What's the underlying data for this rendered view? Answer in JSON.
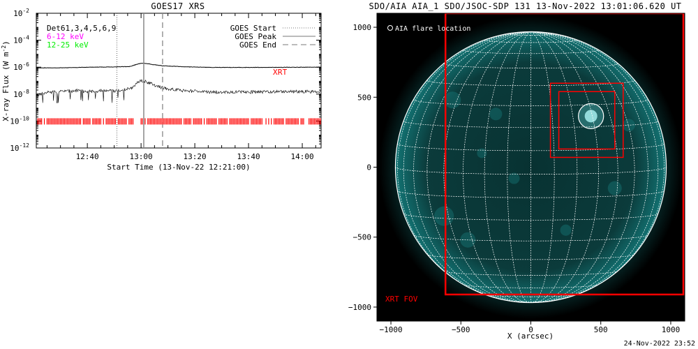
{
  "chart_data": [
    {
      "type": "line",
      "title": "GOES17 XRS",
      "xlabel": "Start Time (13-Nov-22 12:21:00)",
      "ylabel": "X-ray Flux (W m^-2)",
      "ylabel_parts": [
        "X-ray Flux (W m",
        "-2",
        ")"
      ],
      "x_tick_labels": [
        "12:40",
        "13:00",
        "13:20",
        "13:40",
        "14:00"
      ],
      "x_tick_minutes": [
        19,
        39,
        59,
        79,
        99
      ],
      "xlim_minutes": [
        0,
        106
      ],
      "ylim_exponent": [
        -12,
        -2
      ],
      "y_tick_exponents": [
        -2,
        -4,
        -6,
        -8,
        -10,
        -12
      ],
      "y_tick_base": "10",
      "yscale": "log",
      "legend_text": {
        "detectors": "Det",
        "detector_list": "61,3,4,5,6,9",
        "band_low": "6-12 keV",
        "band_high": "12-25 keV"
      },
      "legend_entries": [
        {
          "label": "GOES Start",
          "style": "dotted"
        },
        {
          "label": "GOES Peak",
          "style": "solid"
        },
        {
          "label": "GOES End",
          "style": "dashed"
        }
      ],
      "markers_minutes": {
        "goes_start": 30,
        "goes_peak": 40,
        "goes_end": 47
      },
      "series": [
        {
          "name": "",
          "color": "#000000",
          "points_exp": [
            [
              0,
              -6.05
            ],
            [
              10,
              -6.05
            ],
            [
              20,
              -6.0
            ],
            [
              30,
              -5.98
            ],
            [
              35,
              -5.95
            ],
            [
              38,
              -5.75
            ],
            [
              40,
              -5.7
            ],
            [
              43,
              -5.8
            ],
            [
              47,
              -5.9
            ],
            [
              55,
              -5.97
            ],
            [
              65,
              -6.02
            ],
            [
              80,
              -6.02
            ],
            [
              106,
              -6.0
            ]
          ]
        },
        {
          "name": "",
          "color": "#000000",
          "points_exp": [
            [
              0,
              -8.1
            ],
            [
              5,
              -7.85
            ],
            [
              10,
              -7.8
            ],
            [
              15,
              -7.75
            ],
            [
              20,
              -7.8
            ],
            [
              25,
              -7.75
            ],
            [
              30,
              -7.75
            ],
            [
              35,
              -7.6
            ],
            [
              38,
              -7.1
            ],
            [
              40,
              -7.0
            ],
            [
              43,
              -7.25
            ],
            [
              47,
              -7.55
            ],
            [
              55,
              -7.75
            ],
            [
              65,
              -7.85
            ],
            [
              80,
              -7.85
            ],
            [
              106,
              -7.8
            ]
          ]
        }
      ],
      "xrt_label": "XRT",
      "xrt_segments_minutes": [
        [
          0,
          36
        ],
        [
          39,
          106
        ]
      ],
      "colors": {
        "band_low": "#ff00ff",
        "band_high": "#00ee00",
        "xrt": "#ff0000"
      }
    },
    {
      "type": "scatter",
      "title": "SDO/AIA AIA_1 SDO/JSOC-SDP 131 13-Nov-2022 13:01:06.620 UT",
      "xlabel": "X (arcsec)",
      "ylabel": "",
      "xlim": [
        -1100,
        1100
      ],
      "ylim": [
        -1100,
        1100
      ],
      "x_ticks": [
        -1000,
        -500,
        0,
        500,
        1000
      ],
      "y_ticks": [
        1000,
        500,
        0,
        -500,
        -1000
      ],
      "x_tick_labels": [
        "−1000",
        "−500",
        "0",
        "500",
        "1000"
      ],
      "y_tick_labels": [
        "1000",
        "500",
        "0",
        "−500",
        "−1000"
      ],
      "solar_radius_arcsec": 968,
      "grid": true,
      "flare_location": {
        "x": 430,
        "y": 365,
        "radius": 90
      },
      "flare_legend": "AIA flare location",
      "xrt_fov": {
        "x0": -610,
        "x1": 1090,
        "y0": -910,
        "y1": 1100,
        "label": "XRT FOV"
      },
      "boxes": [
        {
          "x0": 140,
          "x1": 660,
          "y0": 70,
          "y1": 600
        },
        {
          "x0": 200,
          "x1": 600,
          "y0": 130,
          "y1": 540
        }
      ],
      "colors": {
        "disk": "#1aa8a8",
        "background": "#000000",
        "grid": "#ffffff",
        "box": "#ff0000"
      }
    }
  ],
  "timestamp": "24-Nov-2022 23:52"
}
